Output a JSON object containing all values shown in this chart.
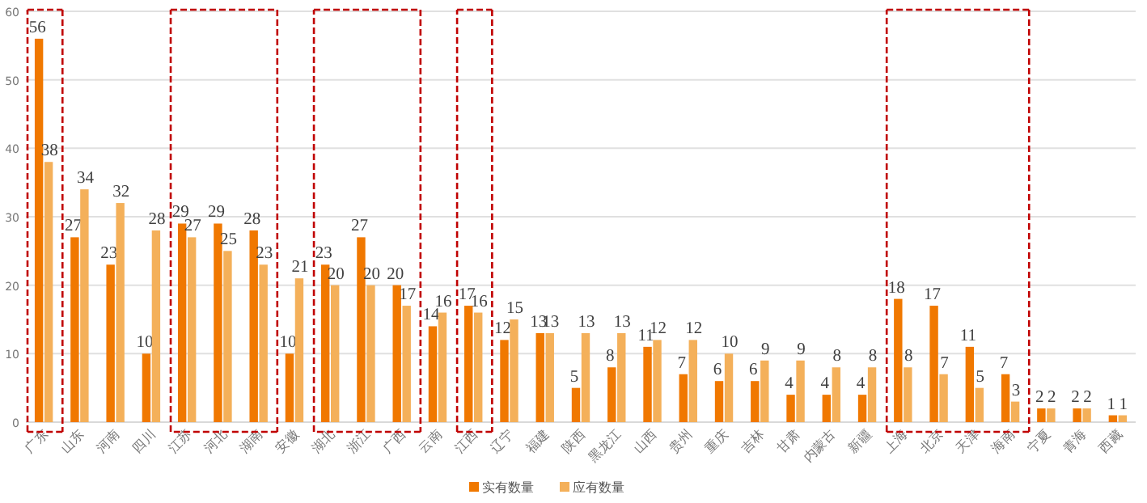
{
  "chart_data": {
    "type": "bar",
    "categories": [
      "广东",
      "山东",
      "河南",
      "四川",
      "江苏",
      "河北",
      "湖南",
      "安徽",
      "湖北",
      "浙江",
      "广西",
      "云南",
      "江西",
      "辽宁",
      "福建",
      "陕西",
      "黑龙江",
      "山西",
      "贵州",
      "重庆",
      "吉林",
      "甘肃",
      "内蒙古",
      "新疆",
      "上海",
      "北京",
      "天津",
      "海南",
      "宁夏",
      "青海",
      "西藏"
    ],
    "series": [
      {
        "name": "实有数量",
        "color": "#f07800",
        "values": [
          56,
          27,
          23,
          10,
          29,
          29,
          28,
          10,
          23,
          27,
          20,
          14,
          17,
          12,
          13,
          5,
          8,
          11,
          7,
          6,
          6,
          4,
          4,
          4,
          18,
          17,
          11,
          7,
          2,
          2,
          1
        ]
      },
      {
        "name": "应有数量",
        "color": "#f4b05a",
        "values": [
          38,
          34,
          32,
          28,
          27,
          25,
          23,
          21,
          20,
          20,
          17,
          16,
          16,
          15,
          13,
          13,
          13,
          12,
          12,
          10,
          9,
          9,
          8,
          8,
          8,
          7,
          5,
          3,
          2,
          2,
          1
        ]
      }
    ],
    "ylim": [
      0,
      60
    ],
    "yticks": [
      0,
      10,
      20,
      30,
      40,
      50,
      60
    ],
    "grid": "y",
    "legend": "bottom",
    "data_labels": true
  }
}
